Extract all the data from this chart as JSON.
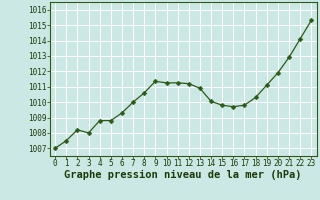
{
  "x": [
    0,
    1,
    2,
    3,
    4,
    5,
    6,
    7,
    8,
    9,
    10,
    11,
    12,
    13,
    14,
    15,
    16,
    17,
    18,
    19,
    20,
    21,
    22,
    23
  ],
  "y": [
    1007.0,
    1007.5,
    1008.2,
    1008.0,
    1008.8,
    1008.8,
    1009.3,
    1010.0,
    1010.6,
    1011.35,
    1011.25,
    1011.25,
    1011.2,
    1010.9,
    1010.05,
    1009.8,
    1009.7,
    1009.8,
    1010.3,
    1011.1,
    1011.9,
    1012.9,
    1014.1,
    1015.3
  ],
  "line_color": "#2d5a1b",
  "marker": "D",
  "marker_size": 2.5,
  "bg_color": "#cce8e4",
  "grid_color": "#ffffff",
  "xlabel": "Graphe pression niveau de la mer (hPa)",
  "xlabel_color": "#1a3a0a",
  "xlabel_fontsize": 7.5,
  "ylim": [
    1006.5,
    1016.5
  ],
  "xlim": [
    -0.5,
    23.5
  ],
  "yticks": [
    1007,
    1008,
    1009,
    1010,
    1011,
    1012,
    1013,
    1014,
    1015,
    1016
  ],
  "xticks": [
    0,
    1,
    2,
    3,
    4,
    5,
    6,
    7,
    8,
    9,
    10,
    11,
    12,
    13,
    14,
    15,
    16,
    17,
    18,
    19,
    20,
    21,
    22,
    23
  ],
  "tick_fontsize": 5.5,
  "tick_color": "#1a3a0a",
  "spine_color": "#2d5a1b"
}
